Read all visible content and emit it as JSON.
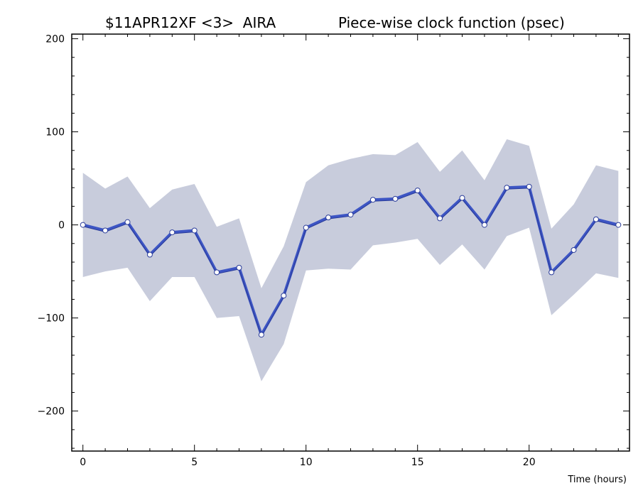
{
  "chart_data": {
    "type": "line",
    "title_left": "$11APR12XF <3>  AIRA",
    "title_right": "Piece-wise clock function (psec)",
    "xlabel": "Time (hours)",
    "ylabel": "",
    "xlim": [
      -0.5,
      24.5
    ],
    "ylim": [
      -243,
      205
    ],
    "x_ticks": [
      0,
      5,
      10,
      15,
      20
    ],
    "y_ticks": [
      -200,
      -100,
      0,
      100,
      200
    ],
    "x_tick_labels": [
      "0",
      "5",
      "10",
      "15",
      "20"
    ],
    "y_tick_labels": [
      "−200",
      "−100",
      "0",
      "100",
      "200"
    ],
    "grid": false,
    "series": [
      {
        "x": [
          0,
          1,
          2,
          3,
          4,
          5,
          6,
          7,
          8,
          9,
          10,
          11,
          12,
          13,
          14,
          15,
          16,
          17,
          18,
          19,
          20,
          21,
          22,
          23,
          24
        ],
        "values": [
          0,
          -6,
          3,
          -32,
          -8,
          -6,
          -51,
          -46,
          -118,
          -76,
          -3,
          8,
          11,
          27,
          28,
          37,
          7,
          29,
          0,
          40,
          41,
          -51,
          -27,
          6,
          0
        ],
        "upper": [
          56,
          39,
          52,
          18,
          38,
          44,
          -2,
          7,
          -68,
          -23,
          46,
          64,
          71,
          76,
          75,
          89,
          57,
          80,
          48,
          92,
          85,
          -4,
          22,
          64,
          58
        ],
        "lower": [
          -56,
          -50,
          -46,
          -82,
          -56,
          -56,
          -100,
          -98,
          -168,
          -128,
          -49,
          -47,
          -48,
          -22,
          -19,
          -15,
          -43,
          -21,
          -48,
          -12,
          -3,
          -97,
          -75,
          -52,
          -57
        ]
      }
    ],
    "colors": {
      "line": "#3d55c4",
      "band": "#c8ccdc",
      "marker_fill": "#ffffff",
      "marker_stroke": "#2a3c9a",
      "axis": "#000000"
    }
  }
}
